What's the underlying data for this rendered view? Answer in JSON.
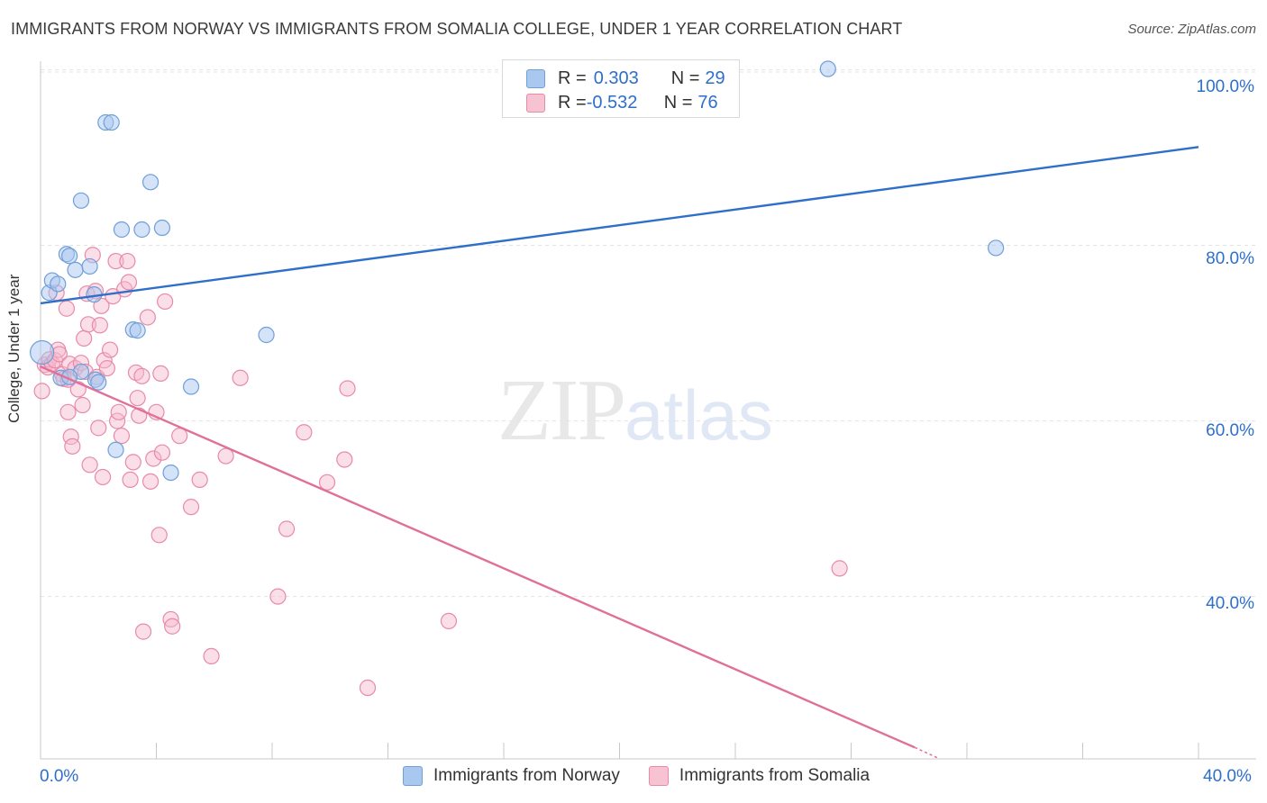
{
  "title": "IMMIGRANTS FROM NORWAY VS IMMIGRANTS FROM SOMALIA COLLEGE, UNDER 1 YEAR CORRELATION CHART",
  "source": "Source: ZipAtlas.com",
  "watermark": {
    "zip": "ZIP",
    "atlas": "atlas"
  },
  "legend_top": {
    "norway": {
      "r_label": "R = ",
      "r_value": "0.303",
      "n_label": "N = ",
      "n_value": "29"
    },
    "somalia": {
      "r_label": "R = ",
      "r_value": "-0.532",
      "n_label": "N = ",
      "n_value": "76"
    }
  },
  "colors": {
    "norway_fill": "#a9c8f0",
    "norway_stroke": "#6f9fd8",
    "norway_line": "#2e6fca",
    "somalia_fill": "#f7b8cc",
    "somalia_stroke": "#e88aa8",
    "somalia_line": "#e0709a",
    "tick_text": "#2e6fca",
    "grid": "#e3e3e3"
  },
  "chart_data": {
    "type": "scatter",
    "title": "IMMIGRANTS FROM NORWAY VS IMMIGRANTS FROM SOMALIA COLLEGE, UNDER 1 YEAR CORRELATION CHART",
    "xlabel": "",
    "ylabel": "College, Under 1 year",
    "xlim": [
      0,
      40
    ],
    "ylim": [
      21.5,
      102
    ],
    "x_tick_labels": [
      "0.0%",
      "40.0%"
    ],
    "y_tick_labels": [
      "100.0%",
      "80.0%",
      "60.0%",
      "40.0%"
    ],
    "y_ticks": [
      100,
      80,
      60,
      40
    ],
    "grid": true,
    "legend_position": "bottom",
    "series": [
      {
        "name": "Immigrants from Norway",
        "r": 0.303,
        "n": 29,
        "trend": [
          [
            0,
            73.4
          ],
          [
            40,
            91.2
          ]
        ],
        "points": [
          [
            0.05,
            67.8
          ],
          [
            0.3,
            74.6
          ],
          [
            0.4,
            76.0
          ],
          [
            0.6,
            75.6
          ],
          [
            0.7,
            64.9
          ],
          [
            0.9,
            79.0
          ],
          [
            1.0,
            78.8
          ],
          [
            1.2,
            77.2
          ],
          [
            1.4,
            65.6
          ],
          [
            1.4,
            85.1
          ],
          [
            1.7,
            77.6
          ],
          [
            1.9,
            64.7
          ],
          [
            1.85,
            74.4
          ],
          [
            2.0,
            64.4
          ],
          [
            2.25,
            94.0
          ],
          [
            2.45,
            94.0
          ],
          [
            2.6,
            56.7
          ],
          [
            2.8,
            81.8
          ],
          [
            3.2,
            70.4
          ],
          [
            3.35,
            70.3
          ],
          [
            3.5,
            81.8
          ],
          [
            3.8,
            87.2
          ],
          [
            4.2,
            82.0
          ],
          [
            4.5,
            54.1
          ],
          [
            5.2,
            63.9
          ],
          [
            7.8,
            69.8
          ],
          [
            27.2,
            100.1
          ],
          [
            33.0,
            79.7
          ],
          [
            1.0,
            65.0
          ]
        ]
      },
      {
        "name": "Immigrants from Somalia",
        "r": -0.532,
        "n": 76,
        "trend": [
          [
            0,
            66.2
          ],
          [
            30.2,
            22.8
          ]
        ],
        "trend_dashed": [
          [
            30.2,
            22.8
          ],
          [
            31.0,
            21.6
          ]
        ],
        "points": [
          [
            0.05,
            63.4
          ],
          [
            0.15,
            66.4
          ],
          [
            0.25,
            66.1
          ],
          [
            0.3,
            67.0
          ],
          [
            0.4,
            66.5
          ],
          [
            0.5,
            66.9
          ],
          [
            0.55,
            74.6
          ],
          [
            0.6,
            68.1
          ],
          [
            0.65,
            67.6
          ],
          [
            0.75,
            65.3
          ],
          [
            0.8,
            64.8
          ],
          [
            0.9,
            72.8
          ],
          [
            0.95,
            61.0
          ],
          [
            1.0,
            66.5
          ],
          [
            1.05,
            58.2
          ],
          [
            1.1,
            57.1
          ],
          [
            1.2,
            66.0
          ],
          [
            1.3,
            63.6
          ],
          [
            1.4,
            66.6
          ],
          [
            1.45,
            61.8
          ],
          [
            1.5,
            69.4
          ],
          [
            1.55,
            65.6
          ],
          [
            1.6,
            74.5
          ],
          [
            1.65,
            71.0
          ],
          [
            1.7,
            55.0
          ],
          [
            1.8,
            78.9
          ],
          [
            1.9,
            74.8
          ],
          [
            1.95,
            65.0
          ],
          [
            2.0,
            59.2
          ],
          [
            2.05,
            70.9
          ],
          [
            2.1,
            73.1
          ],
          [
            2.15,
            53.6
          ],
          [
            2.2,
            66.9
          ],
          [
            2.3,
            66.0
          ],
          [
            2.4,
            68.1
          ],
          [
            2.5,
            74.2
          ],
          [
            2.6,
            78.2
          ],
          [
            2.65,
            60.0
          ],
          [
            2.7,
            61.0
          ],
          [
            2.8,
            58.3
          ],
          [
            2.9,
            75.0
          ],
          [
            3.0,
            78.2
          ],
          [
            3.05,
            75.8
          ],
          [
            3.1,
            53.3
          ],
          [
            3.2,
            55.3
          ],
          [
            3.3,
            65.5
          ],
          [
            3.35,
            62.6
          ],
          [
            3.4,
            60.6
          ],
          [
            3.5,
            65.1
          ],
          [
            3.55,
            36.0
          ],
          [
            3.7,
            71.8
          ],
          [
            3.8,
            53.1
          ],
          [
            3.9,
            55.7
          ],
          [
            4.0,
            61.0
          ],
          [
            4.1,
            47.0
          ],
          [
            4.15,
            65.4
          ],
          [
            4.2,
            56.4
          ],
          [
            4.3,
            73.6
          ],
          [
            4.5,
            37.4
          ],
          [
            4.55,
            36.6
          ],
          [
            4.8,
            58.3
          ],
          [
            5.2,
            50.2
          ],
          [
            5.5,
            53.3
          ],
          [
            5.9,
            33.2
          ],
          [
            6.4,
            56.0
          ],
          [
            6.9,
            64.9
          ],
          [
            8.2,
            40.0
          ],
          [
            8.5,
            47.7
          ],
          [
            9.1,
            58.7
          ],
          [
            9.9,
            53.0
          ],
          [
            10.5,
            55.6
          ],
          [
            10.6,
            63.7
          ],
          [
            11.3,
            29.6
          ],
          [
            14.1,
            37.2
          ],
          [
            27.6,
            43.2
          ],
          [
            0.95,
            64.7
          ]
        ]
      }
    ]
  },
  "legend_bottom": [
    "Immigrants from Norway",
    "Immigrants from Somalia"
  ]
}
